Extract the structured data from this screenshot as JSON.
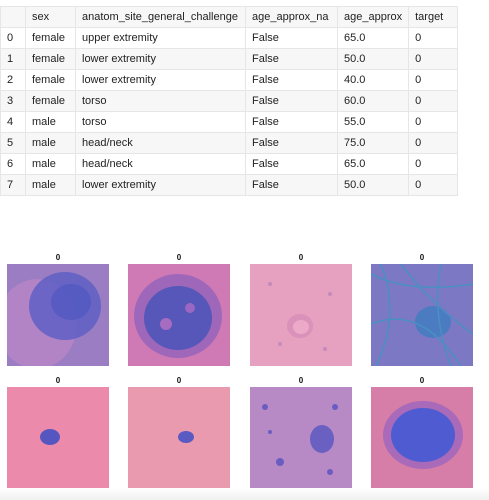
{
  "table": {
    "columns": [
      "",
      "sex",
      "anatom_site_general_challenge",
      "age_approx_na",
      "age_approx",
      "target"
    ],
    "rows": [
      [
        "0",
        "female",
        "upper extremity",
        "False",
        "65.0",
        "0"
      ],
      [
        "1",
        "female",
        "lower extremity",
        "False",
        "50.0",
        "0"
      ],
      [
        "2",
        "female",
        "lower extremity",
        "False",
        "40.0",
        "0"
      ],
      [
        "3",
        "female",
        "torso",
        "False",
        "60.0",
        "0"
      ],
      [
        "4",
        "male",
        "torso",
        "False",
        "55.0",
        "0"
      ],
      [
        "5",
        "male",
        "head/neck",
        "False",
        "75.0",
        "0"
      ],
      [
        "6",
        "male",
        "head/neck",
        "False",
        "65.0",
        "0"
      ],
      [
        "7",
        "male",
        "lower extremity",
        "False",
        "50.0",
        "0"
      ]
    ]
  },
  "gallery": {
    "images": [
      {
        "label": "0",
        "background": "#9a7dc2",
        "lesion": "#5a5ec4"
      },
      {
        "label": "0",
        "background": "#cf7ab5",
        "lesion": "#4e55b8"
      },
      {
        "label": "0",
        "background": "#e6a0c0",
        "lesion": "#d48ab8"
      },
      {
        "label": "0",
        "background": "#7d78c4",
        "lesion": "#3f7dc2"
      },
      {
        "label": "0",
        "background": "#eb8aaa",
        "lesion": "#5656c0"
      },
      {
        "label": "0",
        "background": "#e99aae",
        "lesion": "#5a5ac2"
      },
      {
        "label": "0",
        "background": "#b78ac6",
        "lesion": "#6a5cc0"
      },
      {
        "label": "0",
        "background": "#d77ea8",
        "lesion": "#4f5bd0"
      }
    ]
  }
}
